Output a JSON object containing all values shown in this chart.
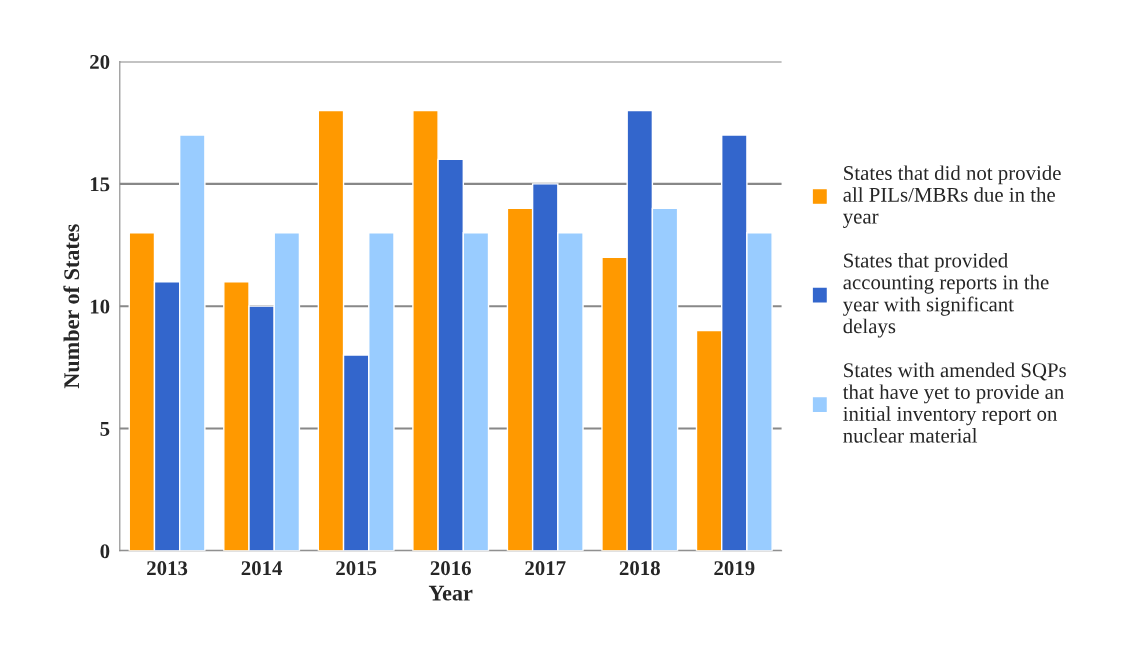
{
  "chart_data": {
    "type": "bar",
    "xlabel": "Year",
    "ylabel": "Number of States",
    "categories": [
      "2013",
      "2014",
      "2015",
      "2016",
      "2017",
      "2018",
      "2019"
    ],
    "series": [
      {
        "name": "States that did not provide all PILs/MBRs due in the year",
        "color": "#ff9900",
        "values": [
          13,
          11,
          18,
          18,
          14,
          12,
          9
        ]
      },
      {
        "name": "States that provided accounting reports in the year with significant delays",
        "color": "#3366cc",
        "values": [
          11,
          10,
          8,
          16,
          15,
          18,
          17
        ]
      },
      {
        "name": "States with amended SQPs that have yet to provide an initial inventory report on nuclear material",
        "color": "#99ccff",
        "values": [
          17,
          13,
          13,
          13,
          13,
          14,
          13
        ]
      }
    ],
    "ylim": [
      0,
      20
    ],
    "yticks": [
      0,
      5,
      10,
      15,
      20
    ],
    "grid": "y",
    "legend": "right"
  }
}
